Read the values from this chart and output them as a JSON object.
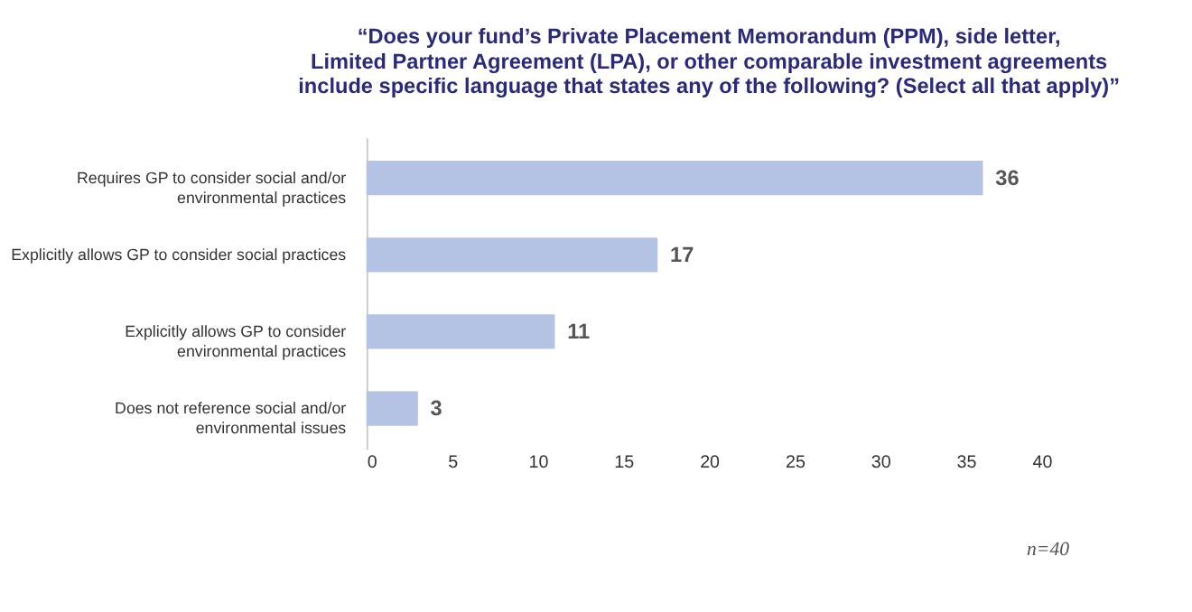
{
  "chart_data": {
    "type": "bar",
    "orientation": "horizontal",
    "title": "“Does your fund’s Private Placement Memorandum (PPM), side letter,\nLimited Partner Agreement (LPA), or other comparable investment agreements\ninclude specific language that states any of the following? (Select all that apply)”",
    "categories": [
      "Requires GP to consider social and/or\nenvironmental practices",
      "Explicitly allows GP to consider social practices",
      "Explicitly allows GP to consider\nenvironmental practices",
      "Does not reference social and/or\nenvironmental issues"
    ],
    "values": [
      36,
      17,
      11,
      3
    ],
    "color": "#b4c3e3",
    "data_labels": true,
    "xlim": [
      0,
      40
    ],
    "xticks": [
      0,
      5,
      10,
      15,
      20,
      25,
      30,
      35,
      40
    ],
    "grid": false,
    "annotations": [
      "n=40"
    ]
  }
}
